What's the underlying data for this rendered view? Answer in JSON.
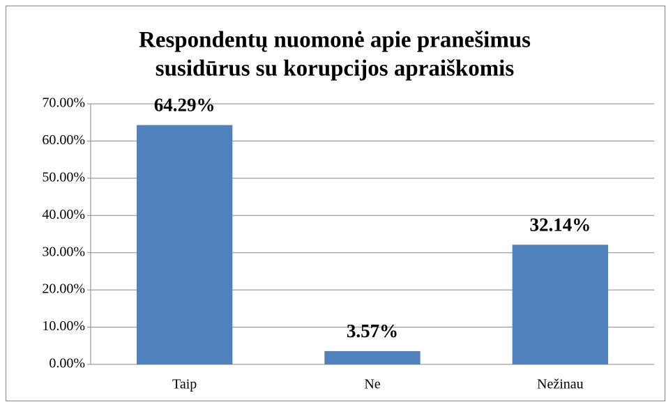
{
  "chart_data": {
    "type": "bar",
    "title": [
      "Respondentų nuomonė apie pranešimus",
      "susidūrus su korupcijos apraiškomis"
    ],
    "categories": [
      "Taip",
      "Ne",
      "Nežinau"
    ],
    "values": [
      64.29,
      3.57,
      32.14
    ],
    "value_labels": [
      "64.29%",
      "3.57%",
      "32.14%"
    ],
    "color": "#4f81bd",
    "ylim": [
      0,
      70
    ],
    "yticks": [
      {
        "value": 0,
        "label": "0.00%"
      },
      {
        "value": 10,
        "label": "10.00%"
      },
      {
        "value": 20,
        "label": "20.00%"
      },
      {
        "value": 30,
        "label": "30.00%"
      },
      {
        "value": 40,
        "label": "40.00%"
      },
      {
        "value": 50,
        "label": "50.00%"
      },
      {
        "value": 60,
        "label": "60.00%"
      },
      {
        "value": 70,
        "label": "70.00%"
      }
    ],
    "grid": true
  }
}
